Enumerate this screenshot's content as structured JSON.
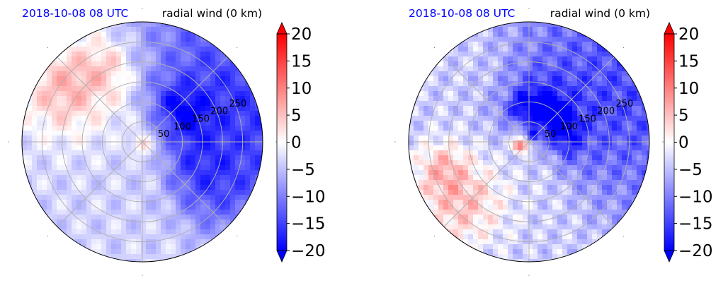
{
  "figure": {
    "background": "#ffffff"
  },
  "chart_data": [
    {
      "type": "heatmap",
      "projection": "polar",
      "title_left": "2018-10-08 08 UTC",
      "title_right": "radial wind (0 km)",
      "title_left_color": "#0000ff",
      "radial_ticks": [
        50,
        100,
        150,
        200,
        250
      ],
      "r_max": 300,
      "grid": true,
      "colorbar": {
        "ticks": [
          20,
          15,
          10,
          5,
          0,
          -5,
          -10,
          -15,
          -20
        ],
        "tick_labels": [
          "20",
          "15",
          "10",
          "5",
          "0",
          "−5",
          "−10",
          "−15",
          "−20"
        ],
        "vmin": -20,
        "vmax": 20,
        "colormap": "bwr",
        "extend": "both"
      },
      "field_summary": [
        {
          "sector": "east and south-east (outer)",
          "value": -14
        },
        {
          "sector": "north-east (inner)",
          "value": -16
        },
        {
          "sector": "north-west (outer)",
          "value": 5
        },
        {
          "sector": "west and south-west",
          "value": -4
        },
        {
          "sector": "center",
          "value": 4
        }
      ]
    },
    {
      "type": "heatmap",
      "projection": "polar",
      "title_left": "2018-10-08 08 UTC",
      "title_right": "radial wind (0 km)",
      "title_left_color": "#0000ff",
      "radial_ticks": [
        50,
        100,
        150,
        200,
        250
      ],
      "r_max": 300,
      "grid": true,
      "colorbar": {
        "ticks": [
          20,
          15,
          10,
          5,
          0,
          -5,
          -10,
          -15,
          -20
        ],
        "tick_labels": [
          "20",
          "15",
          "10",
          "5",
          "0",
          "−5",
          "−10",
          "−15",
          "−20"
        ],
        "vmin": -20,
        "vmax": 20,
        "colormap": "bwr",
        "extend": "both"
      },
      "field_summary": [
        {
          "sector": "north and east (inner ring)",
          "value": -17
        },
        {
          "sector": "east (outer)",
          "value": -14
        },
        {
          "sector": "south-west (outer)",
          "value": 4
        },
        {
          "sector": "center-west",
          "value": 14
        },
        {
          "sector": "west",
          "value": -3
        }
      ]
    }
  ]
}
